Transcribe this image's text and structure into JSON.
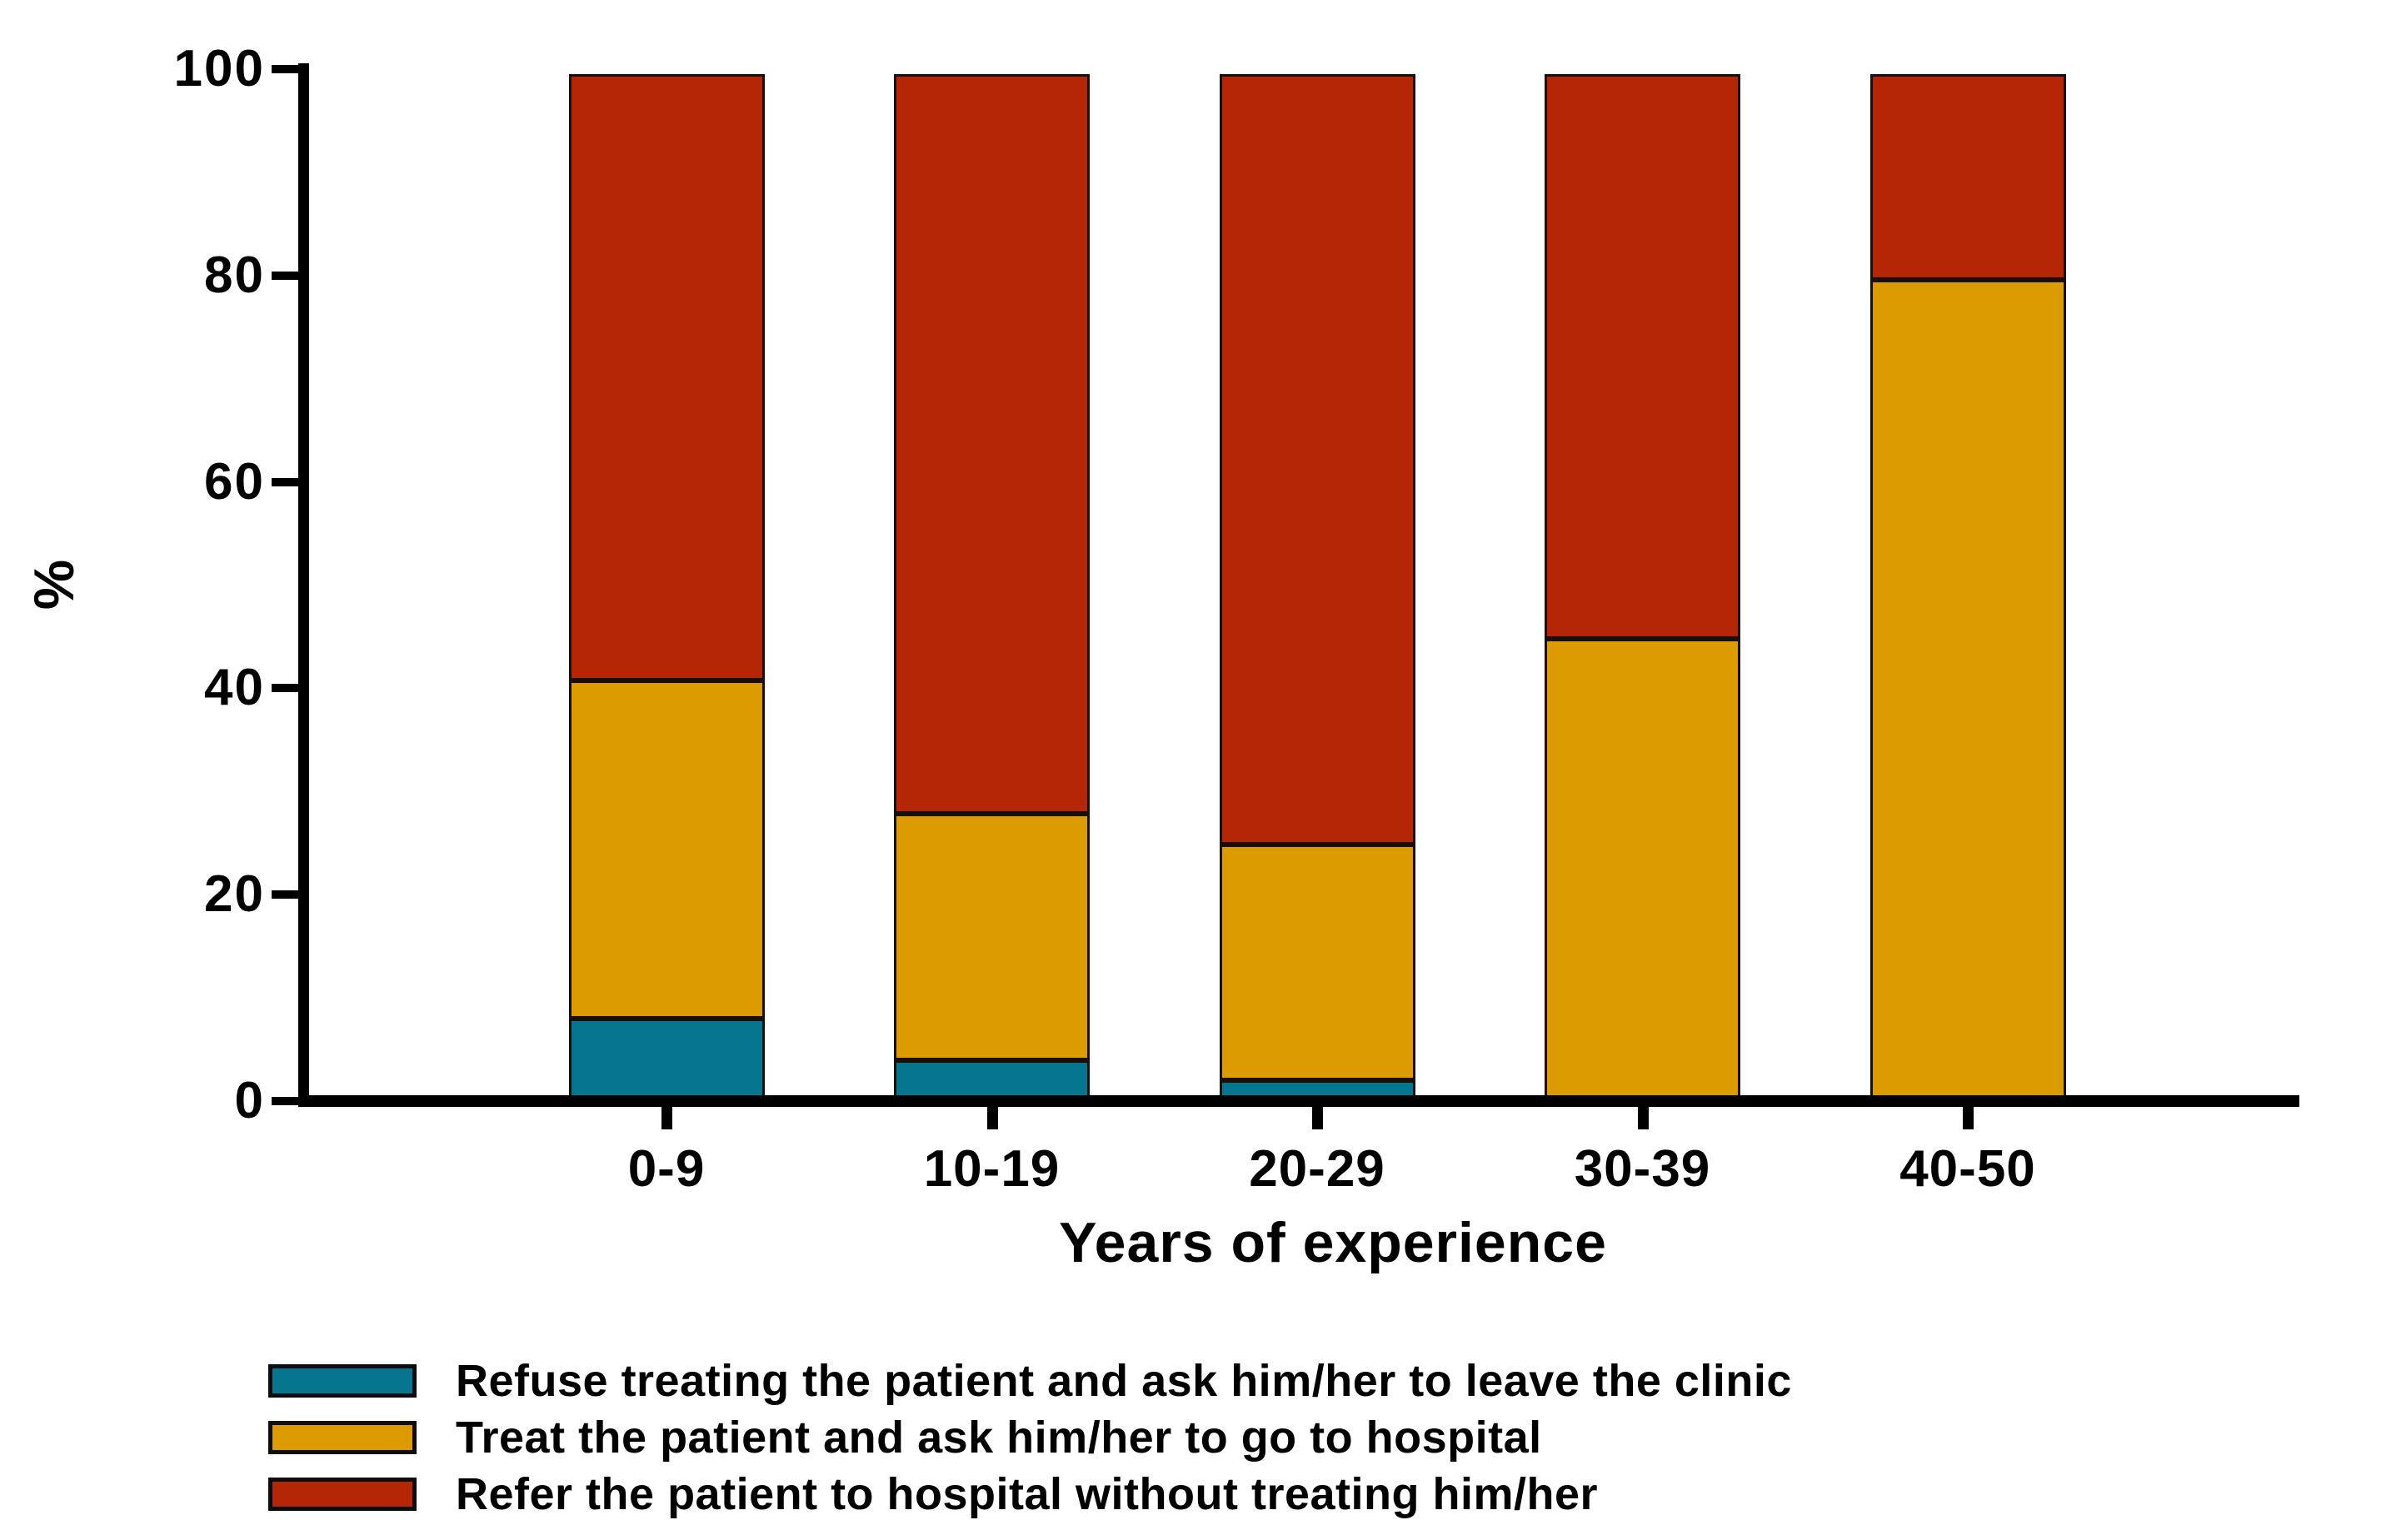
{
  "chart_data": {
    "type": "bar",
    "stacked": true,
    "orientation": "vertical",
    "xlabel": "Years of experience",
    "ylabel": "%",
    "ylim": [
      0,
      100
    ],
    "y_ticks": [
      0,
      20,
      40,
      60,
      80,
      100
    ],
    "categories": [
      "0-9",
      "10-19",
      "20-29",
      "30-39",
      "40-50"
    ],
    "series": [
      {
        "name": "Refuse treating the patient and ask him/her to leave the clinic",
        "color": "#067590",
        "values": [
          8,
          4,
          2,
          0,
          0
        ]
      },
      {
        "name": "Treat the patient and ask him/her to go to hospital",
        "color": "#DC9B00",
        "values": [
          33,
          24,
          23,
          45,
          80
        ]
      },
      {
        "name": "Refer the patient to hospital without treating him/her",
        "color": "#B42604",
        "values": [
          59,
          72,
          75,
          55,
          20
        ]
      }
    ],
    "grid": false,
    "legend_position": "bottom-left",
    "colors": {
      "background": "#ffffff",
      "axis": "#000000",
      "text": "#000000",
      "segment_border": "#181008"
    }
  }
}
